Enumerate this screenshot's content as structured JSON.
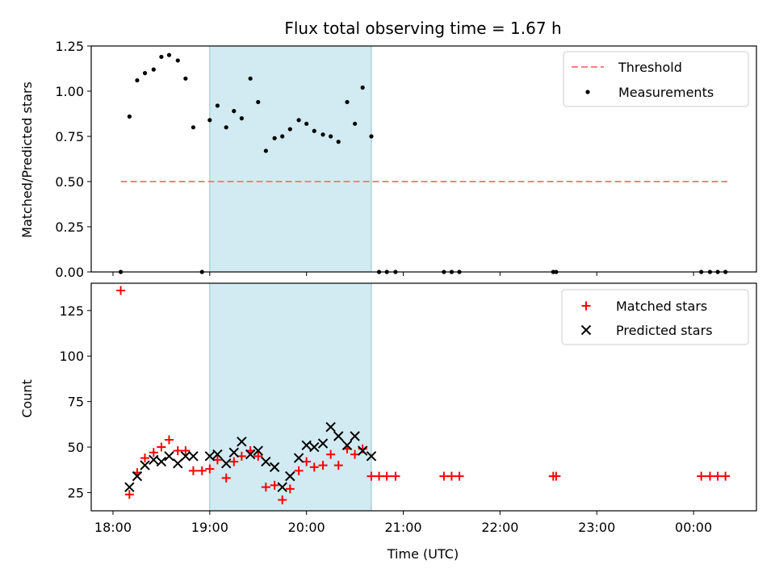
{
  "chart_data": {
    "title": "Flux total observing time = 1.67 h",
    "xlabel": "Time (UTC)",
    "x_domain_hours": [
      17.775,
      24.65
    ],
    "x_ticks": [
      {
        "h": 18,
        "label": "18:00"
      },
      {
        "h": 19,
        "label": "19:00"
      },
      {
        "h": 20,
        "label": "20:00"
      },
      {
        "h": 21,
        "label": "21:00"
      },
      {
        "h": 22,
        "label": "22:00"
      },
      {
        "h": 23,
        "label": "23:00"
      },
      {
        "h": 24,
        "label": "00:00"
      }
    ],
    "shaded_interval_hours": [
      19.0,
      20.67
    ],
    "shade_color": "#add8e6",
    "top": {
      "type": "scatter",
      "ylabel": "Matched/Predicted stars",
      "ylim": [
        0,
        1.25
      ],
      "yticks": [
        {
          "v": 0,
          "label": "0.00"
        },
        {
          "v": 0.25,
          "label": "0.25"
        },
        {
          "v": 0.5,
          "label": "0.50"
        },
        {
          "v": 0.75,
          "label": "0.75"
        },
        {
          "v": 1.0,
          "label": "1.00"
        },
        {
          "v": 1.25,
          "label": "1.25"
        }
      ],
      "threshold": {
        "name": "Threshold",
        "value": 0.5,
        "x_range": [
          18.08,
          24.35
        ],
        "color": "#ff8080"
      },
      "measurements": {
        "name": "Measurements",
        "color": "#000000",
        "points": [
          [
            18.08,
            0.0
          ],
          [
            18.17,
            0.86
          ],
          [
            18.25,
            1.06
          ],
          [
            18.33,
            1.1
          ],
          [
            18.42,
            1.12
          ],
          [
            18.5,
            1.19
          ],
          [
            18.58,
            1.2
          ],
          [
            18.67,
            1.17
          ],
          [
            18.75,
            1.07
          ],
          [
            18.83,
            0.8
          ],
          [
            18.92,
            0.0
          ],
          [
            19.0,
            0.84
          ],
          [
            19.08,
            0.92
          ],
          [
            19.17,
            0.8
          ],
          [
            19.25,
            0.89
          ],
          [
            19.33,
            0.85
          ],
          [
            19.42,
            1.07
          ],
          [
            19.5,
            0.94
          ],
          [
            19.58,
            0.67
          ],
          [
            19.67,
            0.74
          ],
          [
            19.75,
            0.75
          ],
          [
            19.83,
            0.79
          ],
          [
            19.92,
            0.84
          ],
          [
            20.0,
            0.82
          ],
          [
            20.08,
            0.78
          ],
          [
            20.17,
            0.76
          ],
          [
            20.25,
            0.75
          ],
          [
            20.33,
            0.72
          ],
          [
            20.42,
            0.94
          ],
          [
            20.5,
            0.82
          ],
          [
            20.58,
            1.02
          ],
          [
            20.67,
            0.75
          ],
          [
            20.75,
            0.0
          ],
          [
            20.83,
            0.0
          ],
          [
            20.92,
            0.0
          ],
          [
            21.42,
            0.0
          ],
          [
            21.5,
            0.0
          ],
          [
            21.58,
            0.0
          ],
          [
            22.55,
            0.0
          ],
          [
            22.58,
            0.0
          ],
          [
            24.08,
            0.0
          ],
          [
            24.17,
            0.0
          ],
          [
            24.25,
            0.0
          ],
          [
            24.33,
            0.0
          ]
        ]
      }
    },
    "bottom": {
      "type": "scatter",
      "ylabel": "Count",
      "ylim": [
        15,
        140
      ],
      "yticks": [
        {
          "v": 25,
          "label": "25"
        },
        {
          "v": 50,
          "label": "50"
        },
        {
          "v": 75,
          "label": "75"
        },
        {
          "v": 100,
          "label": "100"
        },
        {
          "v": 125,
          "label": "125"
        }
      ],
      "matched": {
        "name": "Matched stars",
        "color": "#ff0000",
        "points": [
          [
            18.08,
            136
          ],
          [
            18.17,
            24
          ],
          [
            18.25,
            36
          ],
          [
            18.33,
            44
          ],
          [
            18.42,
            47
          ],
          [
            18.5,
            50
          ],
          [
            18.58,
            54
          ],
          [
            18.67,
            48
          ],
          [
            18.75,
            48
          ],
          [
            18.83,
            37
          ],
          [
            18.92,
            37
          ],
          [
            19.0,
            38
          ],
          [
            19.08,
            43
          ],
          [
            19.17,
            33
          ],
          [
            19.25,
            42
          ],
          [
            19.33,
            45
          ],
          [
            19.42,
            48
          ],
          [
            19.5,
            45
          ],
          [
            19.58,
            28
          ],
          [
            19.67,
            29
          ],
          [
            19.75,
            21
          ],
          [
            19.83,
            27
          ],
          [
            19.92,
            37
          ],
          [
            20.0,
            42
          ],
          [
            20.08,
            39
          ],
          [
            20.17,
            40
          ],
          [
            20.25,
            46
          ],
          [
            20.33,
            40
          ],
          [
            20.42,
            49
          ],
          [
            20.5,
            46
          ],
          [
            20.58,
            49
          ],
          [
            20.67,
            34
          ],
          [
            20.75,
            34
          ],
          [
            20.83,
            34
          ],
          [
            20.92,
            34
          ],
          [
            21.42,
            34
          ],
          [
            21.5,
            34
          ],
          [
            21.58,
            34
          ],
          [
            22.55,
            34
          ],
          [
            22.58,
            34
          ],
          [
            24.08,
            34
          ],
          [
            24.17,
            34
          ],
          [
            24.25,
            34
          ],
          [
            24.33,
            34
          ]
        ]
      },
      "predicted": {
        "name": "Predicted stars",
        "color": "#000000",
        "points": [
          [
            18.17,
            28
          ],
          [
            18.25,
            34
          ],
          [
            18.33,
            40
          ],
          [
            18.42,
            43
          ],
          [
            18.5,
            42
          ],
          [
            18.58,
            45
          ],
          [
            18.67,
            41
          ],
          [
            18.75,
            45
          ],
          [
            18.83,
            45
          ],
          [
            19.0,
            45
          ],
          [
            19.08,
            46
          ],
          [
            19.17,
            41
          ],
          [
            19.25,
            47
          ],
          [
            19.33,
            53
          ],
          [
            19.42,
            46
          ],
          [
            19.5,
            48
          ],
          [
            19.58,
            42
          ],
          [
            19.67,
            39
          ],
          [
            19.75,
            28
          ],
          [
            19.83,
            34
          ],
          [
            19.92,
            44
          ],
          [
            20.0,
            51
          ],
          [
            20.08,
            50
          ],
          [
            20.17,
            52
          ],
          [
            20.25,
            61
          ],
          [
            20.33,
            56
          ],
          [
            20.42,
            51
          ],
          [
            20.5,
            56
          ],
          [
            20.58,
            48
          ],
          [
            20.67,
            45
          ]
        ]
      }
    }
  }
}
